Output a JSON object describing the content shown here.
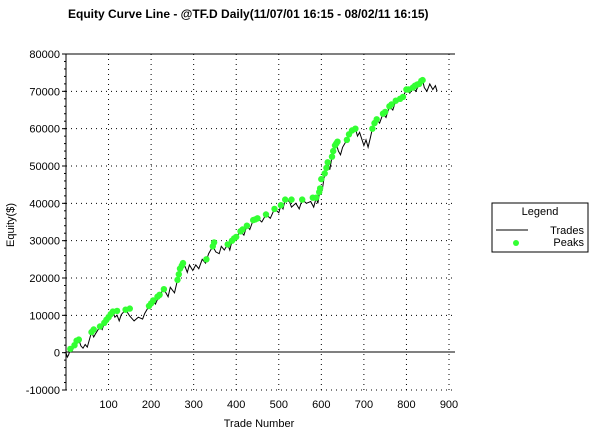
{
  "chart_data": {
    "type": "line",
    "title": "Equity Curve Line - @TF.D Daily(11/07/01 16:15 - 08/02/11 16:15)",
    "xlabel": "Trade Number",
    "ylabel": "Equity($)",
    "xlim": [
      0,
      900
    ],
    "ylim": [
      -10000,
      80000
    ],
    "x_ticks": [
      100,
      200,
      300,
      400,
      500,
      600,
      700,
      800,
      900
    ],
    "y_ticks": [
      -10000,
      0,
      10000,
      20000,
      30000,
      40000,
      50000,
      60000,
      70000,
      80000
    ],
    "x_tick_labels": [
      "100",
      "200",
      "300",
      "400",
      "500",
      "600",
      "700",
      "800",
      "900"
    ],
    "y_tick_labels": [
      "-10000",
      "0",
      "10000",
      "20000",
      "30000",
      "40000",
      "50000",
      "60000",
      "70000",
      "80000"
    ],
    "grid": true,
    "legend": {
      "title": "Legend",
      "position": "right",
      "entries": [
        {
          "label": "Trades",
          "marker": "line",
          "color": "#000000"
        },
        {
          "label": "Peaks",
          "marker": "dot",
          "color": "#33ff33"
        }
      ]
    },
    "series": [
      {
        "name": "Trades",
        "color": "#000000",
        "points": [
          [
            0,
            0
          ],
          [
            3,
            -1200
          ],
          [
            6,
            -600
          ],
          [
            10,
            1000
          ],
          [
            15,
            600
          ],
          [
            20,
            2000
          ],
          [
            25,
            3200
          ],
          [
            30,
            3500
          ],
          [
            35,
            1800
          ],
          [
            40,
            1200
          ],
          [
            45,
            2200
          ],
          [
            50,
            1500
          ],
          [
            55,
            3500
          ],
          [
            60,
            5500
          ],
          [
            65,
            4200
          ],
          [
            70,
            5200
          ],
          [
            80,
            7000
          ],
          [
            85,
            6200
          ],
          [
            90,
            8000
          ],
          [
            100,
            9500
          ],
          [
            110,
            11000
          ],
          [
            115,
            9500
          ],
          [
            120,
            10000
          ],
          [
            125,
            8500
          ],
          [
            130,
            10200
          ],
          [
            140,
            11500
          ],
          [
            150,
            9800
          ],
          [
            160,
            8500
          ],
          [
            170,
            9500
          ],
          [
            180,
            9000
          ],
          [
            185,
            10500
          ],
          [
            195,
            12500
          ],
          [
            205,
            14000
          ],
          [
            210,
            13000
          ],
          [
            220,
            15500
          ],
          [
            230,
            17000
          ],
          [
            240,
            15000
          ],
          [
            245,
            17500
          ],
          [
            255,
            16000
          ],
          [
            262,
            19500
          ],
          [
            268,
            22500
          ],
          [
            275,
            24000
          ],
          [
            280,
            23000
          ],
          [
            285,
            21500
          ],
          [
            290,
            23500
          ],
          [
            298,
            22000
          ],
          [
            305,
            23500
          ],
          [
            312,
            22500
          ],
          [
            320,
            25000
          ],
          [
            328,
            24000
          ],
          [
            335,
            26500
          ],
          [
            345,
            28500
          ],
          [
            352,
            27000
          ],
          [
            360,
            26500
          ],
          [
            365,
            28500
          ],
          [
            372,
            27500
          ],
          [
            380,
            29000
          ],
          [
            385,
            27500
          ],
          [
            390,
            30000
          ],
          [
            400,
            31000
          ],
          [
            410,
            32500
          ],
          [
            418,
            31500
          ],
          [
            425,
            34000
          ],
          [
            432,
            33000
          ],
          [
            440,
            35500
          ],
          [
            450,
            36000
          ],
          [
            460,
            35000
          ],
          [
            470,
            37000
          ],
          [
            480,
            36000
          ],
          [
            490,
            38500
          ],
          [
            500,
            37500
          ],
          [
            505,
            39500
          ],
          [
            510,
            38500
          ],
          [
            515,
            41000
          ],
          [
            525,
            40500
          ],
          [
            530,
            39000
          ],
          [
            540,
            40000
          ],
          [
            548,
            38500
          ],
          [
            555,
            41000
          ],
          [
            565,
            40000
          ],
          [
            575,
            40500
          ],
          [
            582,
            39000
          ],
          [
            588,
            41500
          ],
          [
            592,
            40000
          ],
          [
            597,
            44000
          ],
          [
            602,
            43500
          ],
          [
            608,
            48000
          ],
          [
            615,
            51000
          ],
          [
            620,
            49000
          ],
          [
            625,
            52500
          ],
          [
            635,
            56000
          ],
          [
            640,
            54000
          ],
          [
            645,
            53000
          ],
          [
            650,
            55000
          ],
          [
            660,
            57000
          ],
          [
            665,
            58500
          ],
          [
            672,
            59500
          ],
          [
            680,
            60000
          ],
          [
            685,
            58000
          ],
          [
            690,
            59000
          ],
          [
            700,
            55500
          ],
          [
            705,
            57000
          ],
          [
            710,
            55000
          ],
          [
            715,
            57500
          ],
          [
            720,
            60000
          ],
          [
            730,
            62500
          ],
          [
            737,
            61500
          ],
          [
            745,
            64000
          ],
          [
            752,
            63000
          ],
          [
            760,
            66000
          ],
          [
            768,
            65000
          ],
          [
            775,
            67500
          ],
          [
            785,
            68000
          ],
          [
            792,
            68500
          ],
          [
            800,
            70500
          ],
          [
            808,
            69500
          ],
          [
            815,
            71000
          ],
          [
            822,
            70000
          ],
          [
            830,
            72000
          ],
          [
            838,
            73000
          ],
          [
            842,
            71000
          ],
          [
            848,
            70000
          ],
          [
            855,
            72000
          ],
          [
            862,
            70500
          ],
          [
            868,
            71500
          ],
          [
            872,
            70000
          ]
        ]
      },
      {
        "name": "Peaks",
        "color": "#33ff33",
        "points": [
          [
            10,
            1000
          ],
          [
            20,
            2000
          ],
          [
            25,
            3200
          ],
          [
            30,
            3500
          ],
          [
            60,
            5500
          ],
          [
            65,
            6200
          ],
          [
            80,
            7000
          ],
          [
            90,
            8000
          ],
          [
            95,
            8800
          ],
          [
            100,
            9500
          ],
          [
            105,
            10300
          ],
          [
            110,
            11000
          ],
          [
            120,
            11200
          ],
          [
            140,
            11500
          ],
          [
            150,
            11800
          ],
          [
            195,
            12500
          ],
          [
            200,
            13200
          ],
          [
            205,
            14000
          ],
          [
            215,
            15000
          ],
          [
            220,
            15500
          ],
          [
            230,
            17000
          ],
          [
            262,
            19500
          ],
          [
            265,
            21000
          ],
          [
            268,
            22500
          ],
          [
            272,
            23300
          ],
          [
            275,
            24000
          ],
          [
            330,
            25000
          ],
          [
            345,
            28500
          ],
          [
            348,
            29500
          ],
          [
            380,
            29000
          ],
          [
            390,
            30000
          ],
          [
            395,
            30600
          ],
          [
            400,
            31000
          ],
          [
            410,
            32500
          ],
          [
            415,
            33000
          ],
          [
            425,
            34000
          ],
          [
            440,
            35500
          ],
          [
            445,
            35700
          ],
          [
            450,
            36000
          ],
          [
            470,
            37000
          ],
          [
            490,
            38500
          ],
          [
            505,
            39500
          ],
          [
            515,
            41000
          ],
          [
            530,
            41000
          ],
          [
            555,
            41000
          ],
          [
            580,
            41500
          ],
          [
            588,
            41500
          ],
          [
            595,
            43000
          ],
          [
            597,
            44000
          ],
          [
            600,
            46500
          ],
          [
            608,
            48000
          ],
          [
            612,
            49500
          ],
          [
            615,
            51000
          ],
          [
            625,
            52500
          ],
          [
            628,
            54000
          ],
          [
            632,
            55500
          ],
          [
            635,
            56000
          ],
          [
            638,
            56500
          ],
          [
            660,
            57000
          ],
          [
            665,
            58500
          ],
          [
            672,
            59500
          ],
          [
            680,
            60000
          ],
          [
            720,
            60000
          ],
          [
            725,
            61500
          ],
          [
            730,
            62500
          ],
          [
            745,
            64000
          ],
          [
            750,
            64500
          ],
          [
            760,
            66000
          ],
          [
            765,
            66500
          ],
          [
            775,
            67500
          ],
          [
            785,
            68000
          ],
          [
            792,
            68500
          ],
          [
            800,
            70500
          ],
          [
            805,
            70500
          ],
          [
            815,
            71000
          ],
          [
            820,
            71500
          ],
          [
            825,
            71800
          ],
          [
            830,
            72000
          ],
          [
            835,
            72800
          ],
          [
            838,
            73000
          ]
        ]
      }
    ]
  }
}
